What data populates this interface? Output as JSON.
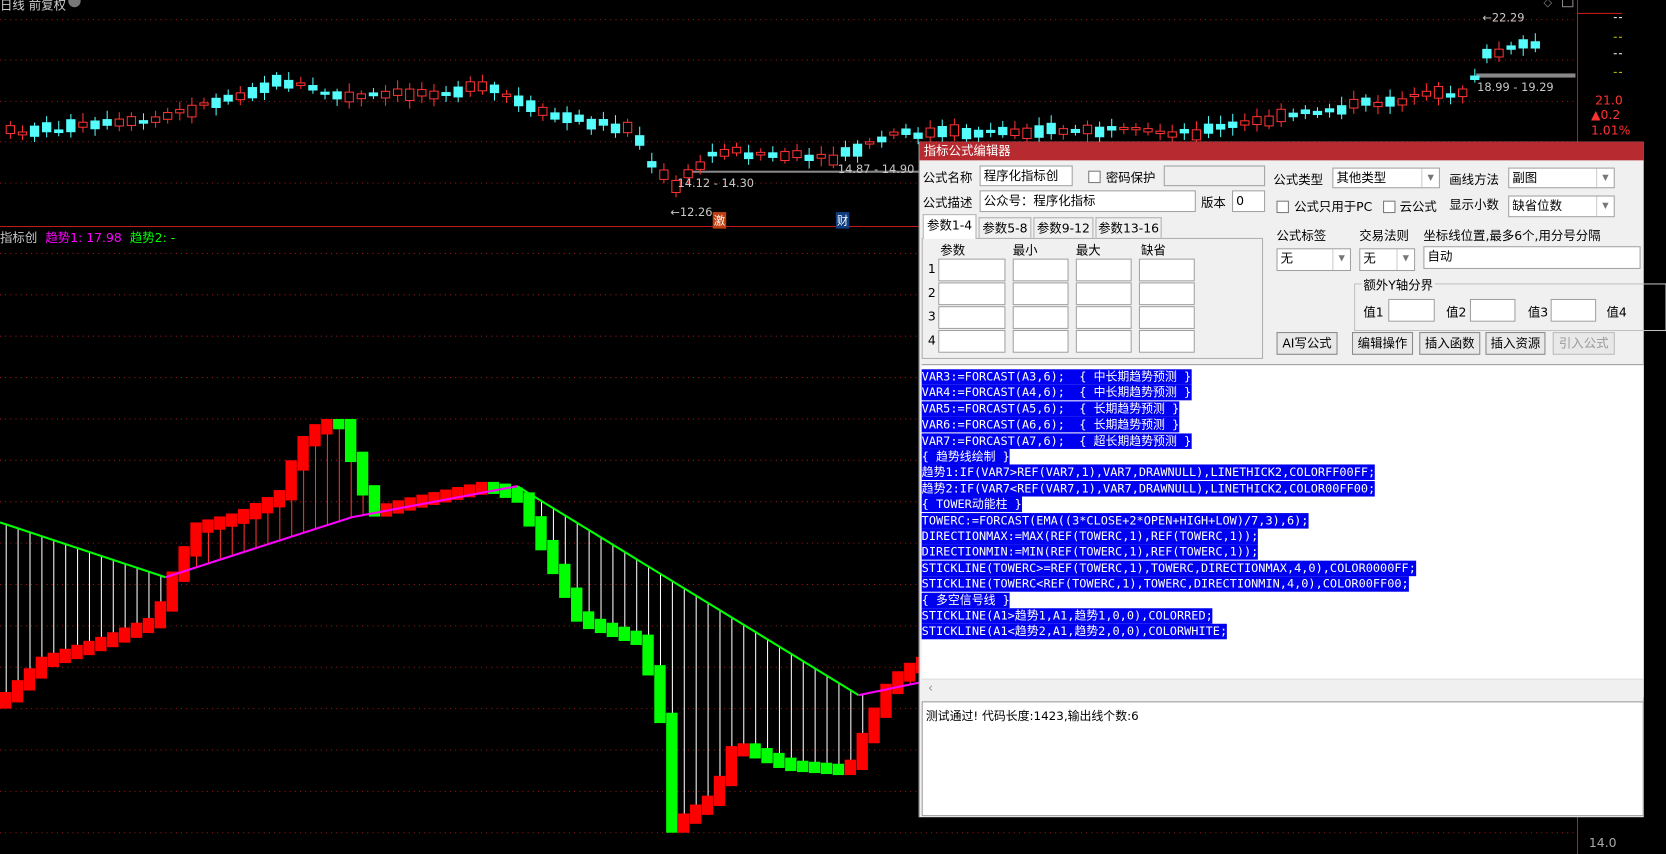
{
  "chart": {
    "period_label": "日线 前复权",
    "indicator_label": "指标创",
    "trend1_label": "趋势1: 17.98",
    "trend2_label": "趋势2: -",
    "high_label": "22.29",
    "range_label_1": "18.99 - 19.29",
    "range_label_2": "14.12 - 14.30",
    "range_label_3": "14.87 - 14.90",
    "low_label": "12.26",
    "badge_1": "激",
    "badge_2": "财",
    "right_axis": {
      "price": "21.0",
      "change": "▲0.2",
      "percent": "1.01%",
      "bottom": "14.0"
    },
    "colors": {
      "up": "#ff3232",
      "down": "#54fcfc",
      "trend1": "#ff00ff",
      "trend2": "#00ff00",
      "grid": "#a01818"
    }
  },
  "dialog": {
    "title": "指标公式编辑器",
    "name_label": "公式名称",
    "name_value": "程序化指标创",
    "password_label": "密码保护",
    "password_checked": false,
    "desc_label": "公式描述",
    "desc_value": "公众号：程序化指标",
    "version_label": "版本",
    "version_value": "0",
    "type_label": "公式类型",
    "type_value": "其他类型",
    "draw_label": "画线方法",
    "draw_value": "副图",
    "pc_only_label": "公式只用于PC",
    "pc_only_checked": false,
    "cloud_label": "云公式",
    "cloud_checked": false,
    "decimals_label": "显示小数",
    "decimals_value": "缺省位数",
    "tabs": [
      "参数1-4",
      "参数5-8",
      "参数9-12",
      "参数13-16"
    ],
    "param_headers": [
      "参数",
      "最小",
      "最大",
      "缺省"
    ],
    "param_rows": [
      "1",
      "2",
      "3",
      "4"
    ],
    "tag_label": "公式标签",
    "tag_value": "无",
    "rule_label": "交易法则",
    "rule_value": "无",
    "axis_label": "坐标线位置,最多6个,用分号分隔",
    "axis_value": "自动",
    "extra_y_label": "额外Y轴分界",
    "extra_y": [
      "值1",
      "值2",
      "值3",
      "值4"
    ],
    "buttons": [
      "AI写公式",
      "编辑操作",
      "插入函数",
      "插入资源",
      "引入公式"
    ],
    "code_lines": [
      "VAR3:=FORCAST(A3,6);  { 中长期趋势预测 }",
      "VAR4:=FORCAST(A4,6);  { 中长期趋势预测 }",
      "VAR5:=FORCAST(A5,6);  { 长期趋势预测 }",
      "VAR6:=FORCAST(A6,6);  { 长期趋势预测 }",
      "VAR7:=FORCAST(A7,6);  { 超长期趋势预测 }",
      "{ 趋势线绘制 }",
      "趋势1:IF(VAR7>REF(VAR7,1),VAR7,DRAWNULL),LINETHICK2,COLORFF00FF;",
      "趋势2:IF(VAR7<REF(VAR7,1),VAR7,DRAWNULL),LINETHICK2,COLOR00FF00;",
      "{ TOWER动能柱 }",
      "TOWERC:=FORCAST(EMA((3*CLOSE+2*OPEN+HIGH+LOW)/7,3),6);",
      "DIRECTIONMAX:=MAX(REF(TOWERC,1),REF(TOWERC,1));",
      "DIRECTIONMIN:=MIN(REF(TOWERC,1),REF(TOWERC,1));",
      "STICKLINE(TOWERC>=REF(TOWERC,1),TOWERC,DIRECTIONMAX,4,0),COLOR0000FF;",
      "STICKLINE(TOWERC<REF(TOWERC,1),TOWERC,DIRECTIONMIN,4,0),COLOR00FF00;",
      "{ 多空信号线 }",
      "STICKLINE(A1>趋势1,A1,趋势1,0,0),COLORRED;",
      "STICKLINE(A1<趋势2,A1,趋势2,0,0),COLORWHITE;"
    ],
    "status": "测试通过! 代码长度:1423,输出线个数:6"
  }
}
